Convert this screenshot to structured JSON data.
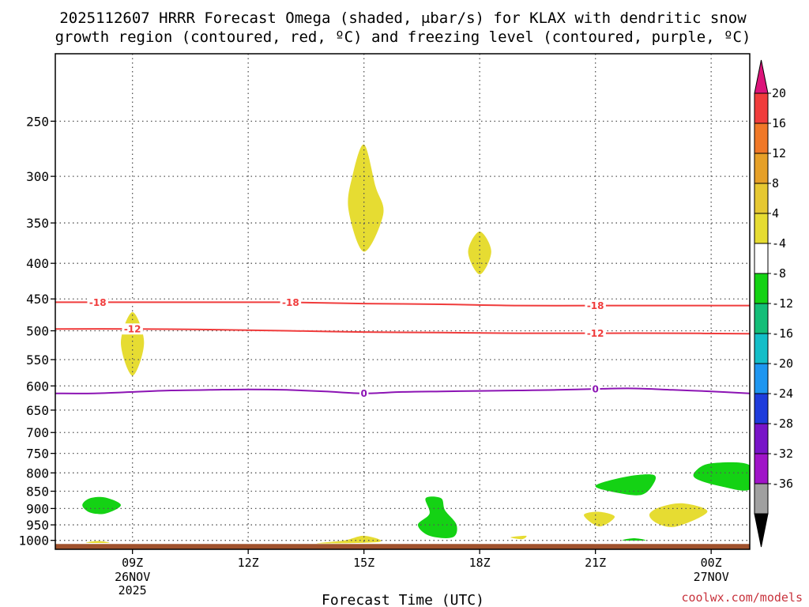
{
  "chart_data": {
    "type": "time-height cross section",
    "title_line1": "2025112607 HRRR Forecast Omega (shaded, μbar/s) for KLAX with dendritic snow",
    "title_line2": "growth region (contoured, red, ºC) and freezing level (contoured, purple, ºC)",
    "xlabel": "Forecast Time (UTC)",
    "credit": "coolwx.com/models",
    "x_unit": "hours since 2025-11-26 06Z",
    "xlim": [
      7.0,
      25.0
    ],
    "y_unit": "hPa",
    "ylim": [
      1030,
      200
    ],
    "y_ticks": [
      250,
      300,
      350,
      400,
      450,
      500,
      550,
      600,
      650,
      700,
      750,
      800,
      850,
      900,
      950,
      1000
    ],
    "x_ticks": [
      {
        "hour": 9,
        "label": "09Z",
        "date": "26NOV",
        "year": "2025"
      },
      {
        "hour": 12,
        "label": "12Z",
        "date": "",
        "year": ""
      },
      {
        "hour": 15,
        "label": "15Z",
        "date": "",
        "year": ""
      },
      {
        "hour": 18,
        "label": "18Z",
        "date": "",
        "year": ""
      },
      {
        "hour": 21,
        "label": "21Z",
        "date": "",
        "year": ""
      },
      {
        "hour": 24,
        "label": "00Z",
        "date": "27NOV",
        "year": ""
      }
    ],
    "ground_pressure_hPa": 1012,
    "ground_color": "#a0522d",
    "contours": [
      {
        "name": "contour-minus18",
        "value": -18,
        "label": "-18",
        "color": "#f03c3c",
        "points": [
          [
            7,
            455
          ],
          [
            9,
            455
          ],
          [
            11,
            455
          ],
          [
            13,
            455
          ],
          [
            15,
            457
          ],
          [
            17,
            458
          ],
          [
            19,
            460
          ],
          [
            21,
            460
          ],
          [
            23,
            460
          ],
          [
            25,
            460
          ]
        ],
        "label_hours": [
          8.1,
          13.1,
          21.0
        ]
      },
      {
        "name": "contour-minus12",
        "value": -12,
        "label": "-12",
        "color": "#f03c3c",
        "points": [
          [
            7,
            497
          ],
          [
            9,
            497
          ],
          [
            11,
            498
          ],
          [
            13,
            500
          ],
          [
            15,
            502
          ],
          [
            17,
            503
          ],
          [
            19,
            504
          ],
          [
            21,
            504
          ],
          [
            23,
            504
          ],
          [
            25,
            505
          ]
        ],
        "label_hours": [
          9.0,
          21.0
        ]
      },
      {
        "name": "freezing-level",
        "value": 0,
        "label": "0",
        "color": "#8c14b4",
        "points": [
          [
            7,
            615
          ],
          [
            8,
            615
          ],
          [
            9,
            612
          ],
          [
            10,
            609
          ],
          [
            11,
            608
          ],
          [
            12,
            607
          ],
          [
            13,
            608
          ],
          [
            14,
            611
          ],
          [
            15,
            615
          ],
          [
            16,
            612
          ],
          [
            17,
            611
          ],
          [
            18,
            610
          ],
          [
            19,
            609
          ],
          [
            20,
            608
          ],
          [
            21,
            606
          ],
          [
            22,
            605
          ],
          [
            23,
            608
          ],
          [
            24,
            611
          ],
          [
            25,
            615
          ]
        ],
        "label_hours": [
          15.0,
          21.0
        ]
      }
    ],
    "shaded_regions": [
      {
        "name": "omega-positive-15z-upper",
        "color": "#e6dc32",
        "points": [
          [
            15.0,
            270
          ],
          [
            15.3,
            310
          ],
          [
            15.5,
            340
          ],
          [
            15.0,
            385
          ],
          [
            14.6,
            335
          ],
          [
            14.7,
            300
          ]
        ]
      },
      {
        "name": "omega-positive-18z-upper",
        "color": "#e6dc32",
        "points": [
          [
            18.0,
            360
          ],
          [
            18.3,
            385
          ],
          [
            18.0,
            415
          ],
          [
            17.7,
            385
          ]
        ]
      },
      {
        "name": "omega-positive-09z-mid",
        "color": "#e6dc32",
        "points": [
          [
            9.0,
            470
          ],
          [
            9.3,
            520
          ],
          [
            9.0,
            580
          ],
          [
            8.7,
            520
          ]
        ]
      },
      {
        "name": "omega-positive-21z-low",
        "color": "#e6dc32",
        "points": [
          [
            20.7,
            920
          ],
          [
            21.1,
            910
          ],
          [
            21.5,
            925
          ],
          [
            21.1,
            955
          ]
        ]
      },
      {
        "name": "omega-positive-23z-low",
        "color": "#e6dc32",
        "points": [
          [
            22.4,
            918
          ],
          [
            22.7,
            895
          ],
          [
            23.3,
            885
          ],
          [
            23.9,
            910
          ],
          [
            23.1,
            955
          ],
          [
            22.6,
            945
          ]
        ]
      },
      {
        "name": "omega-positive-15z-sfc",
        "color": "#e6dc32",
        "points": [
          [
            13.8,
            1010
          ],
          [
            14.5,
            1000
          ],
          [
            15.0,
            985
          ],
          [
            15.4,
            1005
          ]
        ]
      },
      {
        "name": "omega-positive-19z-sfc",
        "color": "#e6dc32",
        "points": [
          [
            18.8,
            990
          ],
          [
            19.2,
            985
          ],
          [
            19.1,
            996
          ]
        ]
      },
      {
        "name": "omega-positive-08z-sfc",
        "color": "#e6dc32",
        "points": [
          [
            7.8,
            1008
          ],
          [
            8.1,
            1002
          ],
          [
            8.4,
            1008
          ]
        ]
      },
      {
        "name": "omega-negative-08z-low",
        "color": "#14d214",
        "points": [
          [
            7.7,
            890
          ],
          [
            7.9,
            870
          ],
          [
            8.3,
            868
          ],
          [
            8.7,
            890
          ],
          [
            8.3,
            915
          ],
          [
            7.9,
            912
          ]
        ]
      },
      {
        "name": "omega-negative-17z-low",
        "color": "#14d214",
        "points": [
          [
            16.6,
            870
          ],
          [
            17.0,
            870
          ],
          [
            17.1,
            905
          ],
          [
            17.4,
            950
          ],
          [
            17.3,
            990
          ],
          [
            16.7,
            985
          ],
          [
            16.4,
            950
          ],
          [
            16.7,
            915
          ]
        ]
      },
      {
        "name": "omega-negative-22z-low",
        "color": "#14d214",
        "points": [
          [
            21.0,
            835
          ],
          [
            21.8,
            810
          ],
          [
            22.5,
            805
          ],
          [
            22.5,
            830
          ],
          [
            22.2,
            860
          ],
          [
            21.6,
            855
          ]
        ]
      },
      {
        "name": "omega-negative-24z-low",
        "color": "#14d214",
        "points": [
          [
            23.6,
            795
          ],
          [
            24.0,
            775
          ],
          [
            25.0,
            780
          ],
          [
            25.0,
            845
          ],
          [
            24.2,
            835
          ],
          [
            23.6,
            815
          ]
        ]
      },
      {
        "name": "omega-negative-22z-sfc",
        "color": "#14d214",
        "points": [
          [
            21.7,
            1000
          ],
          [
            22.0,
            993
          ],
          [
            22.3,
            1000
          ]
        ]
      }
    ],
    "colorbar": {
      "labels": [
        "20",
        "16",
        "12",
        "8",
        "4",
        "-4",
        "-8",
        "-12",
        "-16",
        "-20",
        "-24",
        "-28",
        "-32",
        "-36"
      ],
      "bins": [
        "#f03c3c",
        "#f07828",
        "#e6a028",
        "#e6c832",
        "#e6dc32",
        "#ffffff",
        "#14d214",
        "#14be78",
        "#14bec8",
        "#1e96f0",
        "#1e3cdc",
        "#7814c8",
        "#a014c8",
        "#a0a0a0"
      ],
      "top_arrow": "#dc147a",
      "bottom_arrow": "#000000"
    }
  }
}
